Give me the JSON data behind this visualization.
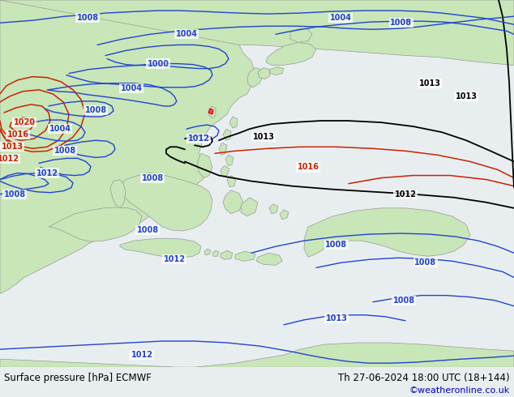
{
  "title_left": "Surface pressure [hPa] ECMWF",
  "title_right": "Th 27-06-2024 18:00 UTC (18+144)",
  "credit": "©weatheronline.co.uk",
  "land_color": "#c8e6b8",
  "sea_color": "#e8eef0",
  "blue_color": "#2244cc",
  "black_color": "#000000",
  "red_color": "#cc2200",
  "gray_color": "#999999",
  "footer_bg": "#ffffff",
  "footer_text": "#000000",
  "credit_color": "#0000bb",
  "label_fs": 7.0,
  "footer_fs": 8.5,
  "credit_fs": 8.0,
  "lw_blue": 1.0,
  "lw_black": 1.3,
  "lw_red": 1.1,
  "lw_coast": 0.5
}
